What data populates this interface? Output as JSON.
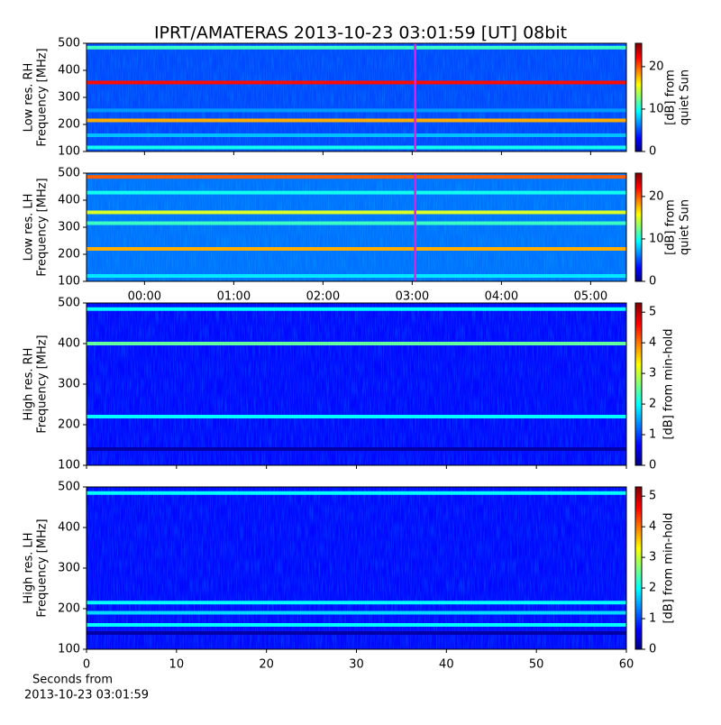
{
  "chart_data": [
    {
      "type": "spectrogram",
      "title": "IPRT/AMATERAS 2013-10-23 03:01:59 [UT]   08bit",
      "ylabel": [
        "Low res. RH",
        "Frequency [MHz]"
      ],
      "ylim": [
        100,
        500
      ],
      "yticks": [
        100,
        200,
        300,
        400,
        500
      ],
      "xlim": [
        -0.65,
        5.4
      ],
      "sharex": "next",
      "marker_x": 3.033,
      "marker_color": "#e020e0",
      "clim": [
        0,
        25.5
      ],
      "cticks": [
        0,
        10,
        20
      ],
      "clabel": [
        "[dB] from",
        "quiet Sun"
      ],
      "background_level": 5,
      "bands": [
        {
          "freq": 484,
          "level": 11
        },
        {
          "freq": 355,
          "level": 22
        },
        {
          "freq": 252,
          "level": 7
        },
        {
          "freq": 215,
          "level": 18
        },
        {
          "freq": 160,
          "level": 8
        },
        {
          "freq": 115,
          "level": 10
        }
      ]
    },
    {
      "type": "spectrogram",
      "ylabel": [
        "Low res. LH",
        "Frequency [MHz]"
      ],
      "ylim": [
        100,
        500
      ],
      "yticks": [
        100,
        200,
        300,
        400,
        500
      ],
      "xlim": [
        -0.65,
        5.4
      ],
      "xticks": [
        {
          "value": 0,
          "label": "00:00"
        },
        {
          "value": 1,
          "label": "01:00"
        },
        {
          "value": 2,
          "label": "02:00"
        },
        {
          "value": 3,
          "label": "03:00"
        },
        {
          "value": 4,
          "label": "04:00"
        },
        {
          "value": 5,
          "label": "05:00"
        }
      ],
      "marker_x": 3.033,
      "marker_color": "#e020e0",
      "clim": [
        0,
        25.5
      ],
      "cticks": [
        0,
        10,
        20
      ],
      "clabel": [
        "[dB] from",
        "quiet Sun"
      ],
      "background_level": 6,
      "bands": [
        {
          "freq": 486,
          "level": 20
        },
        {
          "freq": 428,
          "level": 10
        },
        {
          "freq": 355,
          "level": 15
        },
        {
          "freq": 315,
          "level": 11
        },
        {
          "freq": 220,
          "level": 18
        },
        {
          "freq": 120,
          "level": 9
        }
      ]
    },
    {
      "type": "spectrogram",
      "ylabel": [
        "High res. RH",
        "Frequency [MHz]"
      ],
      "ylim": [
        100,
        500
      ],
      "yticks": [
        100,
        200,
        300,
        400,
        500
      ],
      "xlim": [
        0,
        60
      ],
      "sharex": "next",
      "clim": [
        0,
        5.3
      ],
      "cticks": [
        0,
        1,
        2,
        3,
        4,
        5
      ],
      "clabel": [
        "[dB] from min-hold"
      ],
      "background_level": 0.7,
      "bands": [
        {
          "freq": 485,
          "level": 2
        },
        {
          "freq": 400,
          "level": 2.5
        },
        {
          "freq": 220,
          "level": 2
        },
        {
          "freq": 140,
          "level": 0.2
        }
      ]
    },
    {
      "type": "spectrogram",
      "ylabel": [
        "High res. LH",
        "Frequency [MHz]"
      ],
      "ylim": [
        100,
        500
      ],
      "yticks": [
        100,
        200,
        300,
        400,
        500
      ],
      "xlim": [
        0,
        60
      ],
      "xticks": [
        0,
        10,
        20,
        30,
        40,
        50,
        60
      ],
      "xlabel": [
        "Seconds from",
        "2013-10-23 03:01:59"
      ],
      "clim": [
        0,
        5.3
      ],
      "cticks": [
        0,
        1,
        2,
        3,
        4,
        5
      ],
      "clabel": [
        "[dB] from min-hold"
      ],
      "background_level": 0.7,
      "bands": [
        {
          "freq": 485,
          "level": 2
        },
        {
          "freq": 215,
          "level": 2
        },
        {
          "freq": 190,
          "level": 1.8
        },
        {
          "freq": 160,
          "level": 2
        },
        {
          "freq": 140,
          "level": 0.2
        }
      ]
    }
  ]
}
